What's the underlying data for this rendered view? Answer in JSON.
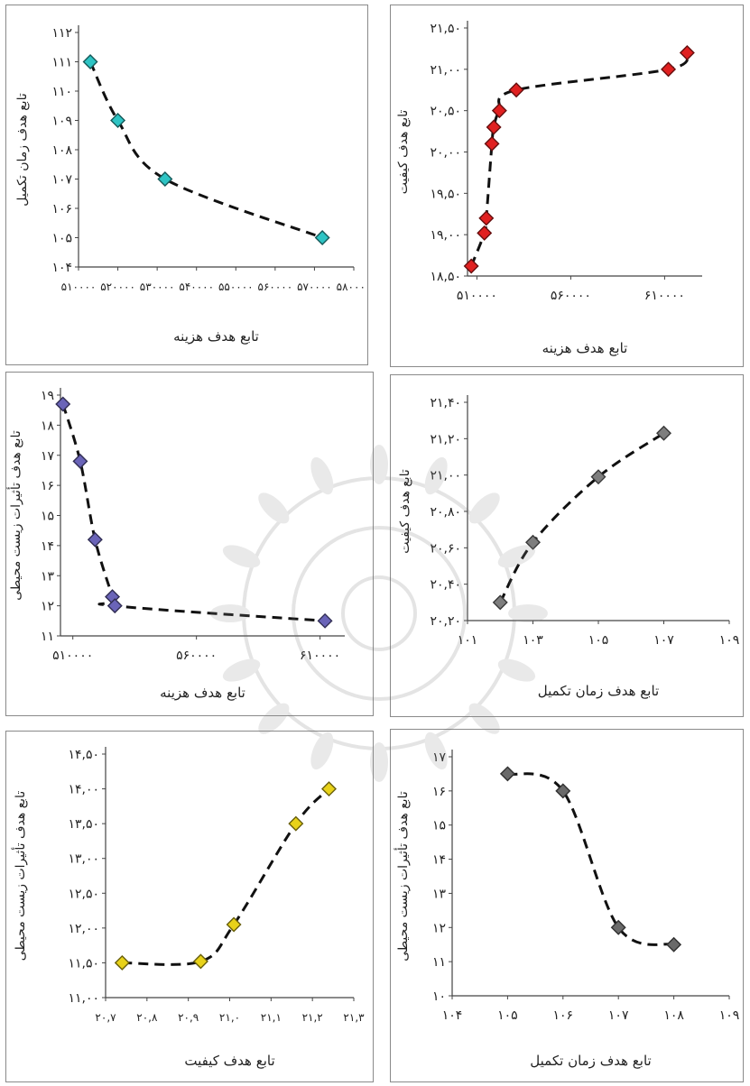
{
  "chart_data": [
    {
      "type": "scatter",
      "xlabel": "تابع هدف هزینه",
      "ylabel": "تابع هدف زمان تکمیل",
      "xlim": [
        510000,
        580000
      ],
      "ylim": [
        104,
        112
      ],
      "x_ticks": [
        "۵۱۰۰۰۰",
        "۵۲۰۰۰۰",
        "۵۳۰۰۰۰",
        "۵۴۰۰۰۰",
        "۵۵۰۰۰۰",
        "۵۶۰۰۰۰",
        "۵۷۰۰۰۰",
        "۵۸۰۰۰۰"
      ],
      "y_ticks": [
        "۱۰۴",
        "۱۰۵",
        "۱۰۶",
        "۱۰۷",
        "۱۰۸",
        "۱۰۹",
        "۱۱۰",
        "۱۱۱",
        "۱۱۲"
      ],
      "x": [
        513000,
        520000,
        532000,
        572000
      ],
      "y": [
        111,
        109,
        107,
        105
      ],
      "marker": "diamond",
      "marker_color": "#2ec4c4",
      "curve": "dashed"
    },
    {
      "type": "scatter",
      "xlabel": "تابع هدف هزینه",
      "ylabel": "تابع هدف کیفیت",
      "xlim": [
        505000,
        630000
      ],
      "ylim": [
        18.5,
        21.5
      ],
      "x_ticks": [
        "۵۱۰۰۰۰",
        "۵۶۰۰۰۰",
        "۶۱۰۰۰۰"
      ],
      "x_tick_values": [
        510000,
        560000,
        610000
      ],
      "y_ticks": [
        "۱۸,۵۰",
        "۱۹,۰۰",
        "۱۹,۵۰",
        "۲۰,۰۰",
        "۲۰,۵۰",
        "۲۱,۰۰",
        "۲۱,۵۰"
      ],
      "x": [
        507000,
        514000,
        515000,
        518000,
        519000,
        522000,
        531000,
        612000,
        622000
      ],
      "y": [
        18.62,
        19.02,
        19.2,
        20.1,
        20.3,
        20.5,
        20.75,
        21.0,
        21.2
      ],
      "marker": "diamond",
      "marker_color": "#e02020",
      "curve": "dashed"
    },
    {
      "type": "scatter",
      "xlabel": "تابع هدف هزینه",
      "ylabel": "تابع هدف تأثیرات زیست محیطی",
      "xlim": [
        505000,
        620000
      ],
      "ylim": [
        11,
        19
      ],
      "x_ticks": [
        "۵۱۰۰۰۰",
        "۵۶۰۰۰۰",
        "۶۱۰۰۰۰"
      ],
      "x_tick_values": [
        510000,
        560000,
        610000
      ],
      "y_ticks": [
        "۱۱",
        "۱۲",
        "۱۳",
        "۱۴",
        "۱۵",
        "۱۶",
        "۱۷",
        "۱۸",
        "۱۹"
      ],
      "x": [
        506000,
        513000,
        519000,
        526000,
        527000,
        612000
      ],
      "y": [
        18.7,
        16.8,
        14.2,
        12.3,
        12.0,
        11.5
      ],
      "marker": "diamond",
      "marker_color": "#6a64b8",
      "curve": "dashed"
    },
    {
      "type": "scatter",
      "xlabel": "تابع هدف زمان تکمیل",
      "ylabel": "تابع هدف کیفیت",
      "xlim": [
        101,
        109
      ],
      "ylim": [
        20.2,
        21.4
      ],
      "x_ticks": [
        "۱۰۱",
        "۱۰۳",
        "۱۰۵",
        "۱۰۷",
        "۱۰۹"
      ],
      "x_tick_values": [
        101,
        103,
        105,
        107,
        109
      ],
      "y_ticks": [
        "۲۰,۲۰",
        "۲۰,۴۰",
        "۲۰,۶۰",
        "۲۰,۸۰",
        "۲۱,۰۰",
        "۲۱,۲۰",
        "۲۱,۴۰"
      ],
      "x": [
        102,
        103,
        105,
        107
      ],
      "y": [
        20.3,
        20.63,
        20.99,
        21.23
      ],
      "marker": "diamond",
      "marker_color": "#7e7e7e",
      "curve": "dashed"
    },
    {
      "type": "scatter",
      "xlabel": "تابع هدف کیفیت",
      "ylabel": "تابع هدف تأثیرات زیست محیطی",
      "xlim": [
        20.7,
        21.3
      ],
      "ylim": [
        11,
        14.5
      ],
      "x_ticks": [
        "۲۰,۷",
        "۲۰,۸",
        "۲۰,۹",
        "۲۱,۰",
        "۲۱,۱",
        "۲۱,۲",
        "۲۱,۳"
      ],
      "x_tick_values": [
        20.7,
        20.8,
        20.9,
        21.0,
        21.1,
        21.2,
        21.3
      ],
      "y_ticks": [
        "۱۱,۰۰",
        "۱۱,۵۰",
        "۱۲,۰۰",
        "۱۲,۵۰",
        "۱۳,۰۰",
        "۱۳,۵۰",
        "۱۴,۰۰",
        "۱۴,۵۰"
      ],
      "x": [
        20.74,
        20.93,
        21.01,
        21.16,
        21.24
      ],
      "y": [
        11.5,
        11.52,
        12.05,
        13.5,
        14.0
      ],
      "marker": "diamond",
      "marker_color": "#e8d21a",
      "curve": "dashed"
    },
    {
      "type": "scatter",
      "xlabel": "تابع هدف زمان تکمیل",
      "ylabel": "تابع هدف تأثیرات زیست محیطی",
      "xlim": [
        104,
        109
      ],
      "ylim": [
        10,
        17
      ],
      "x_ticks": [
        "۱۰۴",
        "۱۰۵",
        "۱۰۶",
        "۱۰۷",
        "۱۰۸",
        "۱۰۹"
      ],
      "x_tick_values": [
        104,
        105,
        106,
        107,
        108,
        109
      ],
      "y_ticks": [
        "۱۰",
        "۱۱",
        "۱۲",
        "۱۳",
        "۱۴",
        "۱۵",
        "۱۶",
        "۱۷"
      ],
      "x": [
        105,
        106,
        107,
        108
      ],
      "y": [
        16.5,
        16.0,
        12.0,
        11.5
      ],
      "marker": "diamond",
      "marker_color": "#6a6a6a",
      "curve": "dashed"
    }
  ]
}
